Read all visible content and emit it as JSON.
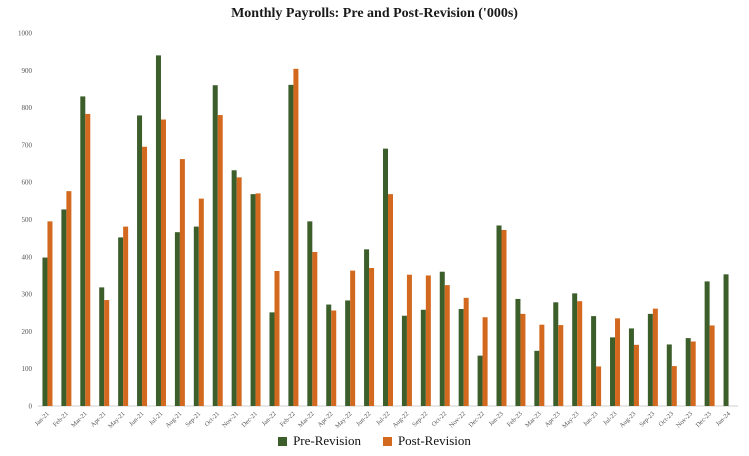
{
  "chart_data": {
    "type": "bar",
    "title": "Monthly Payrolls: Pre and Post-Revision ('000s)",
    "ylim": [
      0,
      1000
    ],
    "yticks": [
      0,
      100,
      200,
      300,
      400,
      500,
      600,
      700,
      800,
      900,
      1000
    ],
    "grid": false,
    "legend_position": "bottom-center",
    "categories": [
      "Jan-21",
      "Feb-21",
      "Mar-21",
      "Apr-21",
      "May-21",
      "Jun-21",
      "Jul-21",
      "Aug-21",
      "Sep-21",
      "Oct-21",
      "Nov-21",
      "Dec-21",
      "Jan-22",
      "Feb-22",
      "Mar-22",
      "Apr-22",
      "May-22",
      "Jun-22",
      "Jul-22",
      "Aug-22",
      "Sep-22",
      "Oct-22",
      "Nov-22",
      "Dec-22",
      "Jan-23",
      "Feb-23",
      "Mar-23",
      "Apr-23",
      "May-23",
      "Jun-23",
      "Jul-23",
      "Aug-23",
      "Sep-23",
      "Oct-23",
      "Nov-23",
      "Dec-23",
      "Jan-24"
    ],
    "series": [
      {
        "name": "Pre-Revision",
        "color": "#3b5e2b",
        "values": [
          398,
          527,
          830,
          318,
          452,
          779,
          940,
          466,
          481,
          860,
          632,
          568,
          251,
          861,
          495,
          272,
          283,
          420,
          690,
          242,
          258,
          360,
          260,
          135,
          484,
          287,
          148,
          278,
          302,
          241,
          184,
          208,
          247,
          165,
          182,
          334,
          353
        ]
      },
      {
        "name": "Post-Revision",
        "color": "#d2691e",
        "values": [
          495,
          576,
          783,
          284,
          481,
          695,
          768,
          662,
          556,
          780,
          613,
          570,
          362,
          904,
          413,
          256,
          363,
          370,
          568,
          352,
          350,
          324,
          290,
          238,
          472,
          247,
          218,
          217,
          281,
          106,
          235,
          164,
          261,
          107,
          173,
          216,
          null
        ]
      }
    ]
  }
}
